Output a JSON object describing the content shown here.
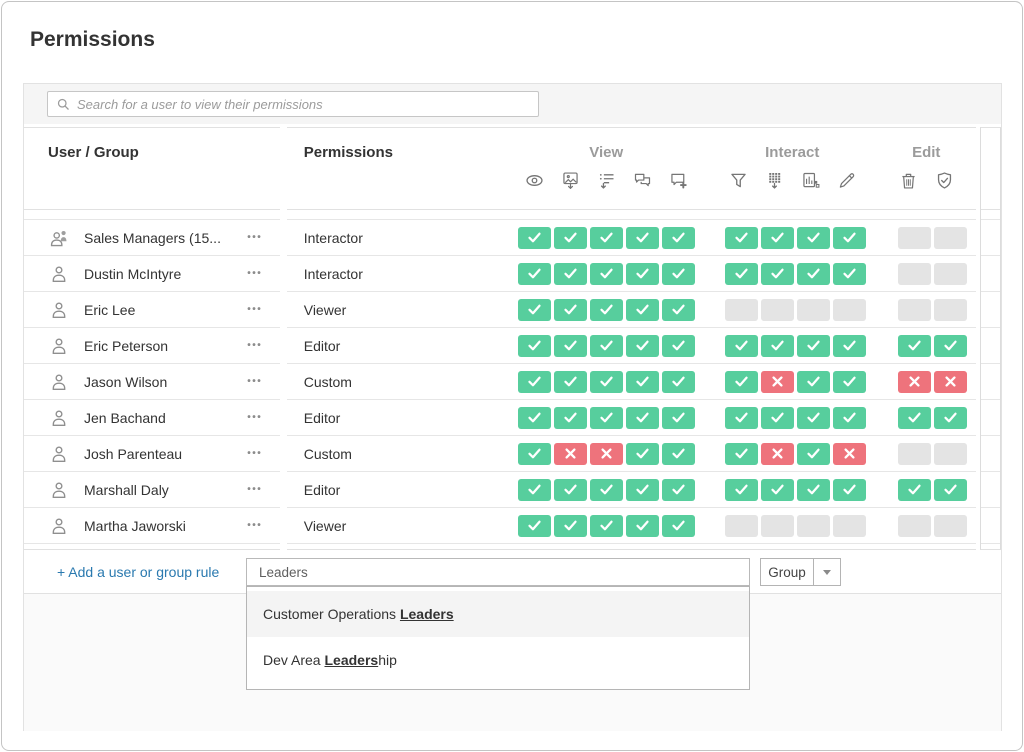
{
  "header": {
    "title": "Permissions"
  },
  "search": {
    "placeholder": "Search for a user to view their permissions",
    "icon": "search-icon"
  },
  "table": {
    "user_group_header": "User / Group",
    "permissions_header": "Permissions",
    "row_menu_glyph": "•••",
    "groups": [
      {
        "label": "View",
        "icons": [
          "eye-icon",
          "export-image-icon",
          "summary-data-icon",
          "view-comments-icon",
          "add-comment-icon"
        ]
      },
      {
        "label": "Interact",
        "icons": [
          "filter-icon",
          "download-full-data-icon",
          "share-customized-icon",
          "web-edit-icon"
        ]
      },
      {
        "label": "Edit",
        "icons": [
          "delete-icon",
          "set-permissions-icon"
        ]
      }
    ],
    "rows": [
      {
        "name": "Sales Managers (15...",
        "entity": "group",
        "role": "Interactor",
        "view": [
          "check",
          "check",
          "check",
          "check",
          "check"
        ],
        "interact": [
          "check",
          "check",
          "check",
          "check"
        ],
        "edit": [
          "none",
          "none"
        ]
      },
      {
        "name": "Dustin McIntyre",
        "entity": "user",
        "role": "Interactor",
        "view": [
          "check",
          "check",
          "check",
          "check",
          "check"
        ],
        "interact": [
          "check",
          "check",
          "check",
          "check"
        ],
        "edit": [
          "none",
          "none"
        ]
      },
      {
        "name": "Eric Lee",
        "entity": "user",
        "role": "Viewer",
        "view": [
          "check",
          "check",
          "check",
          "check",
          "check"
        ],
        "interact": [
          "none",
          "none",
          "none",
          "none"
        ],
        "edit": [
          "none",
          "none"
        ]
      },
      {
        "name": "Eric Peterson",
        "entity": "user",
        "role": "Editor",
        "view": [
          "check",
          "check",
          "check",
          "check",
          "check"
        ],
        "interact": [
          "check",
          "check",
          "check",
          "check"
        ],
        "edit": [
          "check",
          "check"
        ]
      },
      {
        "name": "Jason Wilson",
        "entity": "user",
        "role": "Custom",
        "view": [
          "check",
          "check",
          "check",
          "check",
          "check"
        ],
        "interact": [
          "check",
          "x",
          "check",
          "check"
        ],
        "edit": [
          "x",
          "x"
        ]
      },
      {
        "name": "Jen Bachand",
        "entity": "user",
        "role": "Editor",
        "view": [
          "check",
          "check",
          "check",
          "check",
          "check"
        ],
        "interact": [
          "check",
          "check",
          "check",
          "check"
        ],
        "edit": [
          "check",
          "check"
        ]
      },
      {
        "name": "Josh Parenteau",
        "entity": "user",
        "role": "Custom",
        "view": [
          "check",
          "x",
          "x",
          "check",
          "check"
        ],
        "interact": [
          "check",
          "x",
          "check",
          "x"
        ],
        "edit": [
          "none",
          "none"
        ]
      },
      {
        "name": "Marshall Daly",
        "entity": "user",
        "role": "Editor",
        "view": [
          "check",
          "check",
          "check",
          "check",
          "check"
        ],
        "interact": [
          "check",
          "check",
          "check",
          "check"
        ],
        "edit": [
          "check",
          "check"
        ]
      },
      {
        "name": "Martha Jaworski",
        "entity": "user",
        "role": "Viewer",
        "view": [
          "check",
          "check",
          "check",
          "check",
          "check"
        ],
        "interact": [
          "none",
          "none",
          "none",
          "none"
        ],
        "edit": [
          "none",
          "none"
        ]
      }
    ]
  },
  "footer": {
    "add_rule_label": "+ Add a user or group rule",
    "name_input_value": "Leaders",
    "type_selector": {
      "value": "Group",
      "icon": "chevron-down-icon"
    },
    "suggestions": [
      {
        "pre": "Customer Operations ",
        "match": "Leaders",
        "post": "",
        "highlighted": true
      },
      {
        "pre": "Dev Area ",
        "match": "Leaders",
        "post": "hip",
        "highlighted": false
      }
    ]
  },
  "colors": {
    "allowed": "#57ce9d",
    "denied": "#ee737c",
    "unset": "#e4e4e4",
    "link": "#2a79af"
  }
}
